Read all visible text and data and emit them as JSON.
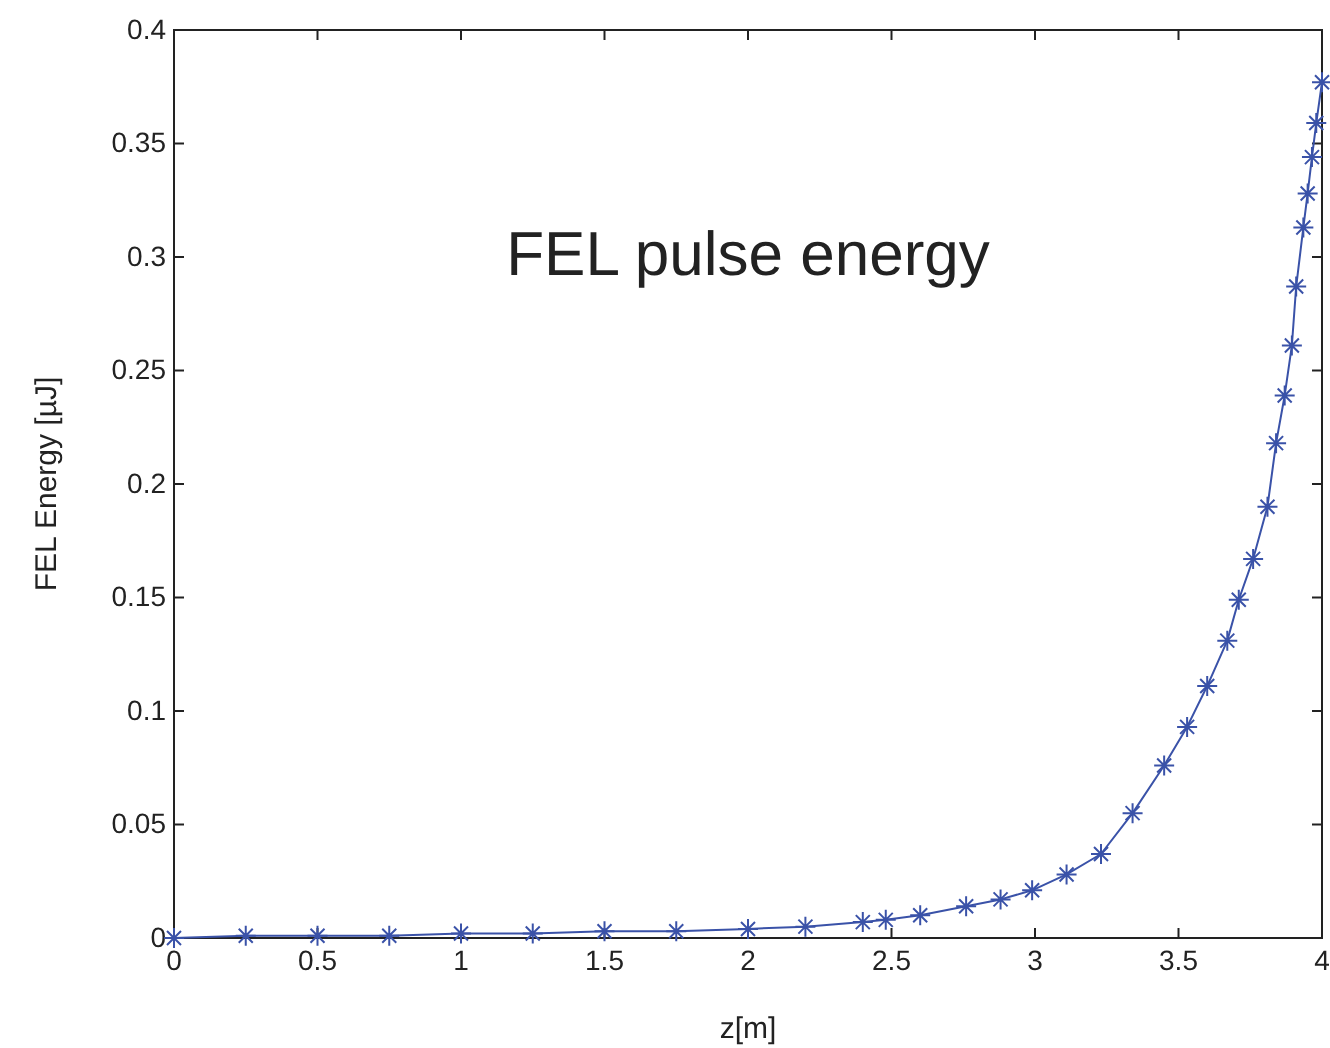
{
  "chart_data": {
    "type": "line",
    "title": "FEL pulse energy",
    "xlabel": "z[m]",
    "ylabel": "FEL Energy [µJ]",
    "x": [
      0,
      0.25,
      0.5,
      0.75,
      1,
      1.25,
      1.5,
      1.75,
      2,
      2.2,
      2.4,
      2.48,
      2.6,
      2.76,
      2.88,
      2.99,
      3.11,
      3.23,
      3.34,
      3.45,
      3.53,
      3.6,
      3.67,
      3.71,
      3.76,
      3.81,
      3.84,
      3.87,
      3.895,
      3.91,
      3.935,
      3.95,
      3.965,
      3.98,
      4.0
    ],
    "series": [
      {
        "color": "#3a52a8",
        "values": [
          0,
          0.001,
          0.001,
          0.001,
          0.002,
          0.002,
          0.003,
          0.003,
          0.004,
          0.005,
          0.007,
          0.008,
          0.01,
          0.014,
          0.017,
          0.021,
          0.028,
          0.037,
          0.055,
          0.076,
          0.093,
          0.111,
          0.131,
          0.149,
          0.167,
          0.19,
          0.218,
          0.239,
          0.261,
          0.287,
          0.313,
          0.328,
          0.344,
          0.359,
          0.377
        ]
      }
    ],
    "xlim": [
      0,
      4
    ],
    "ylim": [
      0,
      0.4
    ],
    "xticks": [
      0,
      0.5,
      1,
      1.5,
      2,
      2.5,
      3,
      3.5,
      4
    ],
    "yticks": [
      0,
      0.05,
      0.1,
      0.15,
      0.2,
      0.25,
      0.3,
      0.35,
      0.4
    ],
    "grid": false,
    "marker": "cross",
    "line_style": "solid"
  }
}
